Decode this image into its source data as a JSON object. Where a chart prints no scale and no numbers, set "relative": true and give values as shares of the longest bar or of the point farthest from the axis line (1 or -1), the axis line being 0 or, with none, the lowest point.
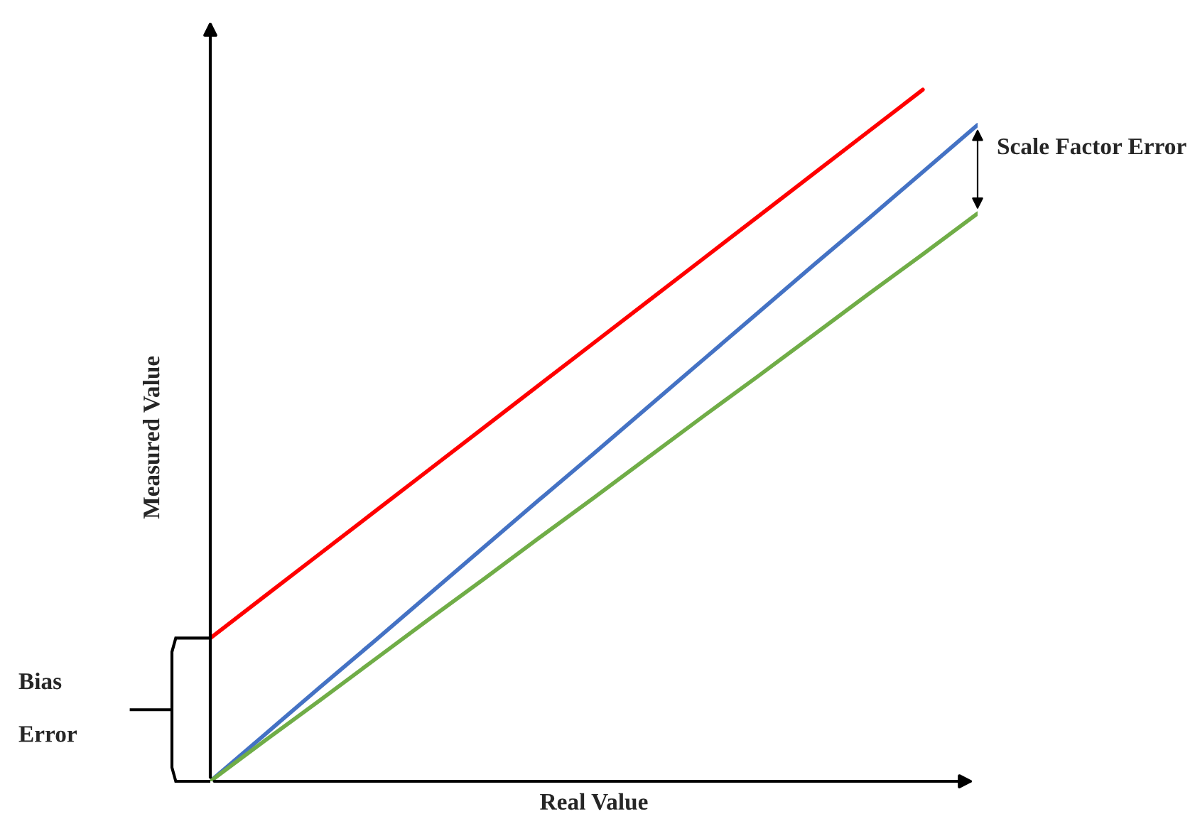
{
  "chart_data": {
    "type": "line",
    "relative": true,
    "xlabel": "Real Value",
    "ylabel": "Measured Value",
    "categories": [
      null,
      null,
      null,
      null,
      null,
      null,
      null,
      null,
      null,
      null,
      null,
      null,
      null,
      null,
      null
    ],
    "legend": false,
    "series": [
      {
        "color": "#ff0000",
        "values": [
          0.207,
          0.268,
          0.329,
          0.39,
          0.451,
          0.512,
          0.573,
          0.634,
          0.695,
          0.756,
          0.817,
          0.878,
          0.939,
          1.0,
          null
        ]
      },
      {
        "color": "#4472c4",
        "values": [
          0,
          0.068,
          0.136,
          0.203,
          0.271,
          0.339,
          0.407,
          0.474,
          0.542,
          0.61,
          0.678,
          0.746,
          0.813,
          0.881,
          0.949
        ]
      },
      {
        "color": "#70ad47",
        "values": [
          0,
          0.059,
          0.117,
          0.176,
          0.235,
          0.293,
          0.352,
          0.41,
          0.469,
          0.528,
          0.586,
          0.645,
          0.704,
          0.762,
          0.821
        ]
      }
    ],
    "annotations": [
      "Scale Factor Error",
      "Bias Error"
    ]
  }
}
